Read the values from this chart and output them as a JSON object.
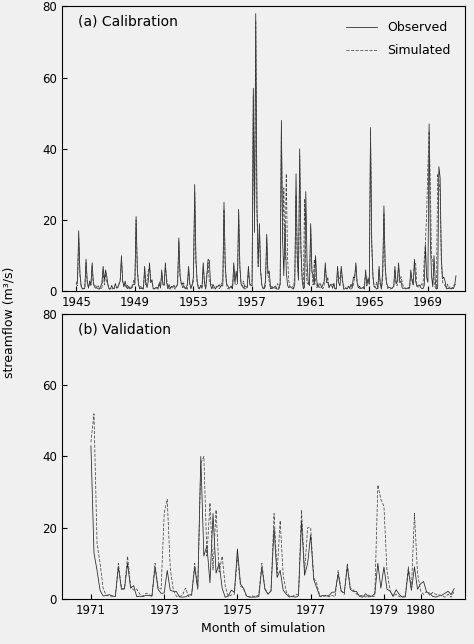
{
  "cal_label": "(a) Calibration",
  "val_label": "(b) Validation",
  "ylabel": "streamflow (m³/s)",
  "xlabel": "Month of simulation",
  "obs_label": "Observed",
  "sim_label": "Simulated",
  "obs_color": "#222222",
  "sim_color": "#444444",
  "ylim": [
    0,
    80
  ],
  "cal_xticks": [
    1945,
    1949,
    1953,
    1957,
    1961,
    1965,
    1969
  ],
  "val_xticks": [
    1971,
    1973,
    1975,
    1977,
    1979,
    1980
  ],
  "cal_xlim": [
    1944.0,
    1971.5
  ],
  "val_xlim": [
    1970.2,
    1981.2
  ],
  "background_color": "#f0f0f0",
  "linewidth": 0.55,
  "title_fontsize": 10,
  "label_fontsize": 9,
  "tick_fontsize": 8.5
}
